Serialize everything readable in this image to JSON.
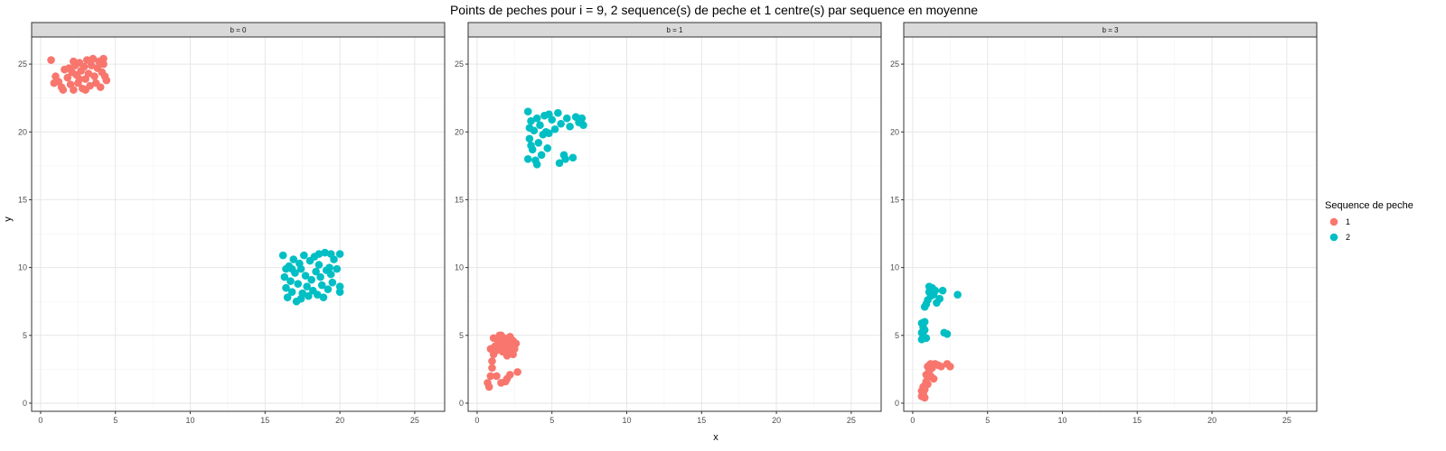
{
  "chart_data": {
    "type": "scatter",
    "title": "Points de peches pour i = 9, 2 sequence(s) de peche et 1 centre(s) par sequence en moyenne",
    "xlabel": "x",
    "ylabel": "y",
    "xlim": [
      -0.6,
      27
    ],
    "ylim": [
      -0.6,
      27
    ],
    "xticks": [
      0,
      5,
      10,
      15,
      20,
      25
    ],
    "yticks": [
      0,
      5,
      10,
      15,
      20,
      25
    ],
    "grid": true,
    "legend": {
      "title": "Sequence de peche",
      "position": "right",
      "entries": [
        {
          "label": "1",
          "color": "#F8766D"
        },
        {
          "label": "2",
          "color": "#00BFC4"
        }
      ]
    },
    "panels": [
      {
        "strip": "b = 0",
        "series": [
          {
            "name": "1",
            "color": "#F8766D",
            "points": [
              [
                0.7,
                25.3
              ],
              [
                1.0,
                24.1
              ],
              [
                1.2,
                23.7
              ],
              [
                1.4,
                23.3
              ],
              [
                1.6,
                24.6
              ],
              [
                1.8,
                24.0
              ],
              [
                2.0,
                23.5
              ],
              [
                2.1,
                24.4
              ],
              [
                2.2,
                23.1
              ],
              [
                2.3,
                24.9
              ],
              [
                2.4,
                24.2
              ],
              [
                2.5,
                23.6
              ],
              [
                2.6,
                25.1
              ],
              [
                2.7,
                24.5
              ],
              [
                2.8,
                23.2
              ],
              [
                2.9,
                24.8
              ],
              [
                3.0,
                23.9
              ],
              [
                3.1,
                25.3
              ],
              [
                3.2,
                24.3
              ],
              [
                3.3,
                23.4
              ],
              [
                3.4,
                24.9
              ],
              [
                3.5,
                25.4
              ],
              [
                3.6,
                24.1
              ],
              [
                3.7,
                23.6
              ],
              [
                3.8,
                24.7
              ],
              [
                3.9,
                25.2
              ],
              [
                4.0,
                23.3
              ],
              [
                4.1,
                24.4
              ],
              [
                4.2,
                25.0
              ],
              [
                4.3,
                24.1
              ],
              [
                4.4,
                23.8
              ],
              [
                4.2,
                25.4
              ],
              [
                1.5,
                23.1
              ],
              [
                2.2,
                25.2
              ],
              [
                3.0,
                23.1
              ],
              [
                0.9,
                23.6
              ],
              [
                1.9,
                24.7
              ],
              [
                2.6,
                23.9
              ]
            ]
          },
          {
            "name": "2",
            "color": "#00BFC4",
            "points": [
              [
                16.2,
                10.9
              ],
              [
                16.3,
                9.3
              ],
              [
                16.4,
                8.5
              ],
              [
                16.5,
                7.8
              ],
              [
                16.6,
                10.1
              ],
              [
                16.7,
                9.0
              ],
              [
                16.8,
                8.2
              ],
              [
                16.9,
                10.6
              ],
              [
                17.0,
                9.6
              ],
              [
                17.1,
                7.5
              ],
              [
                17.2,
                8.8
              ],
              [
                17.3,
                10.3
              ],
              [
                17.4,
                9.9
              ],
              [
                17.5,
                8.1
              ],
              [
                17.6,
                10.9
              ],
              [
                17.7,
                9.4
              ],
              [
                17.8,
                8.6
              ],
              [
                17.9,
                7.9
              ],
              [
                18.0,
                10.5
              ],
              [
                18.1,
                9.1
              ],
              [
                18.2,
                8.3
              ],
              [
                18.3,
                10.8
              ],
              [
                18.4,
                9.7
              ],
              [
                18.5,
                8.0
              ],
              [
                18.6,
                10.2
              ],
              [
                18.7,
                9.3
              ],
              [
                18.8,
                8.7
              ],
              [
                18.9,
                7.8
              ],
              [
                19.0,
                11.1
              ],
              [
                19.1,
                9.8
              ],
              [
                19.2,
                8.4
              ],
              [
                19.3,
                10.0
              ],
              [
                19.4,
                9.5
              ],
              [
                19.5,
                8.9
              ],
              [
                19.6,
                10.6
              ],
              [
                19.8,
                9.9
              ],
              [
                20.0,
                11.0
              ],
              [
                20.0,
                8.6
              ],
              [
                20.0,
                8.2
              ],
              [
                19.4,
                11.0
              ],
              [
                16.8,
                9.9
              ],
              [
                17.4,
                7.7
              ],
              [
                18.6,
                11.0
              ],
              [
                16.4,
                9.9
              ]
            ]
          }
        ]
      },
      {
        "strip": "b = 1",
        "series": [
          {
            "name": "1",
            "color": "#F8766D",
            "points": [
              [
                0.7,
                1.5
              ],
              [
                0.8,
                1.2
              ],
              [
                0.9,
                2.0
              ],
              [
                1.0,
                2.6
              ],
              [
                1.1,
                3.6
              ],
              [
                1.2,
                4.2
              ],
              [
                1.3,
                3.9
              ],
              [
                1.4,
                4.6
              ],
              [
                1.5,
                5.0
              ],
              [
                1.6,
                4.3
              ],
              [
                1.7,
                3.8
              ],
              [
                1.8,
                4.8
              ],
              [
                1.9,
                4.1
              ],
              [
                2.0,
                4.5
              ],
              [
                2.1,
                3.9
              ],
              [
                2.2,
                4.9
              ],
              [
                2.3,
                4.2
              ],
              [
                2.4,
                4.6
              ],
              [
                2.5,
                4.0
              ],
              [
                2.6,
                4.4
              ],
              [
                1.0,
                3.1
              ],
              [
                1.3,
                2.0
              ],
              [
                1.6,
                1.5
              ],
              [
                1.9,
                1.6
              ],
              [
                2.2,
                2.1
              ],
              [
                2.0,
                1.8
              ],
              [
                2.7,
                2.3
              ],
              [
                1.1,
                4.8
              ],
              [
                0.9,
                4.0
              ],
              [
                2.4,
                3.6
              ],
              [
                1.6,
                5.0
              ],
              [
                2.0,
                3.5
              ]
            ]
          },
          {
            "name": "2",
            "color": "#00BFC4",
            "points": [
              [
                3.4,
                21.5
              ],
              [
                3.4,
                18.0
              ],
              [
                3.5,
                19.5
              ],
              [
                3.6,
                20.8
              ],
              [
                3.7,
                18.7
              ],
              [
                3.8,
                20.1
              ],
              [
                3.9,
                17.9
              ],
              [
                4.0,
                21.0
              ],
              [
                4.1,
                19.2
              ],
              [
                4.2,
                20.5
              ],
              [
                4.3,
                18.3
              ],
              [
                4.4,
                19.8
              ],
              [
                4.5,
                21.2
              ],
              [
                4.6,
                20.0
              ],
              [
                4.7,
                18.8
              ],
              [
                4.8,
                19.9
              ],
              [
                5.0,
                20.9
              ],
              [
                5.2,
                20.2
              ],
              [
                5.4,
                21.4
              ],
              [
                5.5,
                17.7
              ],
              [
                5.6,
                20.6
              ],
              [
                5.8,
                18.3
              ],
              [
                6.0,
                21.0
              ],
              [
                6.2,
                20.4
              ],
              [
                6.4,
                18.1
              ],
              [
                6.6,
                21.1
              ],
              [
                6.8,
                20.7
              ],
              [
                7.0,
                21.0
              ],
              [
                7.1,
                20.5
              ],
              [
                4.0,
                17.6
              ],
              [
                3.6,
                19.0
              ],
              [
                4.8,
                21.3
              ],
              [
                5.9,
                18.0
              ],
              [
                3.5,
                20.3
              ]
            ]
          }
        ]
      },
      {
        "strip": "b = 3",
        "series": [
          {
            "name": "1",
            "color": "#F8766D",
            "points": [
              [
                0.6,
                0.5
              ],
              [
                0.6,
                0.9
              ],
              [
                0.7,
                0.7
              ],
              [
                0.7,
                1.2
              ],
              [
                0.8,
                1.0
              ],
              [
                0.8,
                0.4
              ],
              [
                0.9,
                1.6
              ],
              [
                0.9,
                2.1
              ],
              [
                1.0,
                2.7
              ],
              [
                1.1,
                2.4
              ],
              [
                1.2,
                2.9
              ],
              [
                1.3,
                2.6
              ],
              [
                1.4,
                1.8
              ],
              [
                1.0,
                1.4
              ],
              [
                1.2,
                2.0
              ],
              [
                1.7,
                2.8
              ],
              [
                1.9,
                2.7
              ],
              [
                2.3,
                2.9
              ],
              [
                2.5,
                2.7
              ],
              [
                1.5,
                2.9
              ],
              [
                0.7,
                0.6
              ],
              [
                1.1,
                2.8
              ],
              [
                0.8,
                1.3
              ]
            ]
          },
          {
            "name": "2",
            "color": "#00BFC4",
            "points": [
              [
                0.6,
                4.7
              ],
              [
                0.6,
                5.2
              ],
              [
                0.7,
                5.6
              ],
              [
                0.7,
                4.9
              ],
              [
                0.8,
                6.0
              ],
              [
                0.8,
                5.4
              ],
              [
                0.9,
                4.8
              ],
              [
                0.6,
                5.9
              ],
              [
                0.9,
                7.3
              ],
              [
                1.0,
                7.6
              ],
              [
                1.1,
                8.2
              ],
              [
                1.2,
                7.9
              ],
              [
                1.3,
                8.5
              ],
              [
                1.4,
                8.0
              ],
              [
                1.5,
                8.3
              ],
              [
                1.6,
                7.4
              ],
              [
                1.1,
                8.6
              ],
              [
                1.8,
                7.7
              ],
              [
                2.0,
                8.3
              ],
              [
                2.1,
                5.2
              ],
              [
                2.3,
                5.1
              ],
              [
                3.0,
                8.0
              ],
              [
                0.8,
                7.1
              ],
              [
                0.7,
                5.0
              ]
            ]
          }
        ]
      }
    ]
  }
}
